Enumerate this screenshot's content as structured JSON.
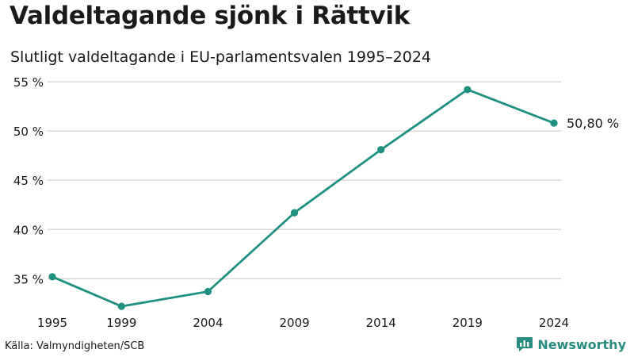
{
  "header": {
    "title": "Valdeltagande sjönk i Rättvik",
    "subtitle": "Slutligt valdeltagande i EU-parlamentsvalen 1995–2024"
  },
  "footer": {
    "source": "Källa: Valmyndigheten/SCB",
    "brand": "Newsworthy",
    "brand_icon": "newsworthy-logo-icon"
  },
  "colors": {
    "line": "#1f9080",
    "grid": "#d9d9d9",
    "text": "#1a1a1a",
    "brand": "#2a8b80"
  },
  "chart_data": {
    "type": "line",
    "x": [
      1995,
      1999,
      2004,
      2009,
      2014,
      2019,
      2024
    ],
    "categories": [
      "1995",
      "1999",
      "2004",
      "2009",
      "2014",
      "2019",
      "2024"
    ],
    "series": [
      {
        "values": [
          35.2,
          32.2,
          33.7,
          41.7,
          48.1,
          54.2,
          50.8
        ]
      }
    ],
    "yticks": [
      35,
      40,
      45,
      50,
      55
    ],
    "ytick_labels": [
      "35 %",
      "40 %",
      "45 %",
      "50 %",
      "55 %"
    ],
    "ylim": [
      31,
      55
    ],
    "grid": true,
    "end_label": "50,80 %",
    "title": "Valdeltagande sjönk i Rättvik",
    "subtitle": "Slutligt valdeltagande i EU-parlamentsvalen 1995–2024",
    "xlabel": "",
    "ylabel": ""
  }
}
